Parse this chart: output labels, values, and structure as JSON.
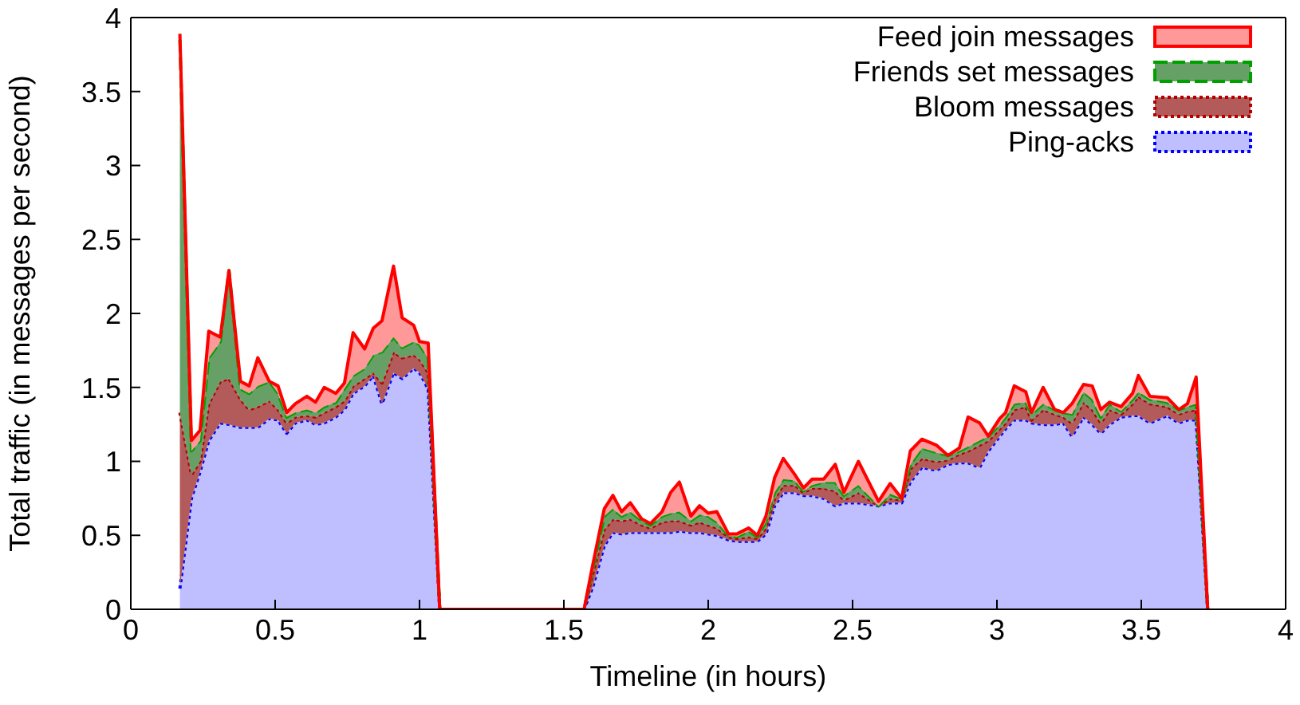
{
  "chart_data": {
    "type": "area",
    "stacked": true,
    "xlabel": "Timeline (in hours)",
    "ylabel": "Total traffic (in messages per second)",
    "xlim": [
      0,
      4
    ],
    "xticks": [
      0,
      0.5,
      1,
      1.5,
      2,
      2.5,
      3,
      3.5,
      4
    ],
    "ylim": [
      0,
      4
    ],
    "yticks": [
      0,
      0.5,
      1,
      1.5,
      2,
      2.5,
      3,
      3.5,
      4
    ],
    "grid": false,
    "legend": "top right",
    "x": [
      0.17,
      0.21,
      0.24,
      0.27,
      0.31,
      0.34,
      0.38,
      0.41,
      0.44,
      0.48,
      0.51,
      0.54,
      0.57,
      0.61,
      0.64,
      0.67,
      0.71,
      0.74,
      0.77,
      0.81,
      0.84,
      0.87,
      0.91,
      0.94,
      0.98,
      1.0,
      1.03,
      1.07,
      1.57,
      1.6,
      1.64,
      1.67,
      1.7,
      1.73,
      1.77,
      1.8,
      1.84,
      1.87,
      1.9,
      1.94,
      1.97,
      2.0,
      2.03,
      2.07,
      2.1,
      2.14,
      2.17,
      2.2,
      2.23,
      2.26,
      2.3,
      2.33,
      2.36,
      2.4,
      2.44,
      2.47,
      2.52,
      2.59,
      2.63,
      2.67,
      2.7,
      2.74,
      2.79,
      2.83,
      2.87,
      2.9,
      2.94,
      2.97,
      3.01,
      3.03,
      3.06,
      3.1,
      3.12,
      3.16,
      3.2,
      3.23,
      3.26,
      3.3,
      3.33,
      3.36,
      3.39,
      3.43,
      3.47,
      3.49,
      3.53,
      3.59,
      3.63,
      3.66,
      3.69,
      3.73
    ],
    "series": [
      {
        "name": "Ping-acks",
        "color": "#bfbfff",
        "line_style": "dotted",
        "values": [
          0.14,
          0.75,
          0.93,
          1.14,
          1.26,
          1.25,
          1.23,
          1.23,
          1.23,
          1.29,
          1.28,
          1.19,
          1.26,
          1.28,
          1.25,
          1.26,
          1.3,
          1.35,
          1.46,
          1.51,
          1.58,
          1.39,
          1.6,
          1.56,
          1.63,
          1.6,
          1.49,
          0,
          0,
          0.15,
          0.43,
          0.52,
          0.51,
          0.52,
          0.52,
          0.52,
          0.52,
          0.52,
          0.53,
          0.52,
          0.52,
          0.51,
          0.5,
          0.47,
          0.46,
          0.46,
          0.46,
          0.51,
          0.7,
          0.79,
          0.79,
          0.77,
          0.77,
          0.75,
          0.7,
          0.72,
          0.72,
          0.7,
          0.72,
          0.72,
          0.86,
          0.96,
          0.94,
          0.98,
          0.99,
          0.99,
          0.96,
          1.07,
          1.17,
          1.22,
          1.28,
          1.28,
          1.26,
          1.25,
          1.25,
          1.26,
          1.17,
          1.3,
          1.25,
          1.19,
          1.25,
          1.3,
          1.31,
          1.31,
          1.26,
          1.31,
          1.26,
          1.28,
          1.28,
          0
        ]
      },
      {
        "name": "Bloom messages",
        "color": "#b35a5a",
        "line_style": "dotted",
        "values": [
          1.19,
          0.16,
          0.07,
          0.25,
          0.28,
          0.31,
          0.19,
          0.12,
          0.14,
          0.12,
          0.07,
          0.07,
          0.04,
          0.03,
          0.05,
          0.07,
          0.07,
          0.06,
          0.05,
          0.05,
          0.02,
          0.14,
          0.14,
          0.14,
          0.09,
          0.09,
          0.11,
          0,
          0,
          0.09,
          0.11,
          0.09,
          0.09,
          0.09,
          0.05,
          0.03,
          0.07,
          0.08,
          0.07,
          0.05,
          0.07,
          0.06,
          0.05,
          0.02,
          0.02,
          0.03,
          0.02,
          0.04,
          0.05,
          0.05,
          0.05,
          0.02,
          0.05,
          0.07,
          0.1,
          0.02,
          0.07,
          0,
          0.03,
          0.02,
          0.09,
          0.06,
          0.06,
          0.03,
          0.06,
          0.08,
          0.15,
          0.07,
          0.05,
          0.04,
          0.07,
          0.09,
          0.02,
          0.1,
          0.07,
          0.04,
          0.09,
          0.1,
          0.1,
          0.07,
          0.1,
          0.02,
          0.08,
          0.13,
          0.13,
          0.06,
          0.06,
          0.06,
          0.07,
          0
        ]
      },
      {
        "name": "Friends set messages",
        "color": "#66a066",
        "line_style": "dashed",
        "values": [
          2.52,
          0.16,
          0.14,
          0.31,
          0.27,
          0.73,
          0.07,
          0.11,
          0.14,
          0.13,
          0.11,
          0.04,
          0.03,
          0.04,
          0.03,
          0.04,
          0.03,
          0.08,
          0.07,
          0.07,
          0.12,
          0.21,
          0.1,
          0.07,
          0.09,
          0.1,
          0.1,
          0,
          0,
          0.03,
          0.09,
          0.07,
          0.03,
          0.05,
          0.03,
          0.02,
          0.04,
          0.05,
          0.06,
          0.03,
          0.05,
          0.06,
          0.04,
          0.01,
          0.01,
          0.04,
          0.01,
          0.04,
          0.04,
          0.04,
          0.03,
          0.01,
          0.02,
          0.04,
          0.06,
          0.03,
          0.05,
          0,
          0.03,
          0.01,
          0.03,
          0.07,
          0.06,
          0.03,
          0.02,
          0.03,
          0.03,
          0.03,
          0.03,
          0.04,
          0.04,
          0.03,
          0.04,
          0.04,
          0.03,
          0.03,
          0.06,
          0.07,
          0.07,
          0.04,
          0.04,
          0.02,
          0.03,
          0.03,
          0.03,
          0.03,
          0.03,
          0.03,
          0.04,
          0
        ]
      },
      {
        "name": "Feed join messages",
        "color": "#ff9999",
        "line_style": "solid",
        "values": [
          0.04,
          0.07,
          0.07,
          0.18,
          0.03,
          0,
          0.05,
          0.05,
          0.19,
          0,
          0.05,
          0.03,
          0.06,
          0.09,
          0.07,
          0.13,
          0.06,
          0.04,
          0.29,
          0.13,
          0.18,
          0.21,
          0.48,
          0.2,
          0.11,
          0.02,
          0.1,
          0,
          0,
          0.03,
          0.05,
          0.09,
          0.03,
          0.06,
          0.01,
          0.01,
          0.03,
          0.14,
          0.2,
          0.03,
          0.06,
          0.02,
          0.07,
          0.01,
          0.02,
          0.02,
          0.01,
          0.04,
          0.1,
          0.14,
          0.04,
          0.02,
          0.04,
          0.02,
          0.12,
          0.02,
          0.16,
          0.03,
          0.07,
          0,
          0.09,
          0.06,
          0.05,
          0,
          0.02,
          0.2,
          0.12,
          0,
          0.04,
          0.03,
          0.12,
          0.07,
          0.01,
          0.11,
          0,
          0,
          0.07,
          0.05,
          0.09,
          0.05,
          0.01,
          0.03,
          0.04,
          0.11,
          0.02,
          0.03,
          0,
          0.02,
          0.18,
          0
        ]
      }
    ]
  }
}
